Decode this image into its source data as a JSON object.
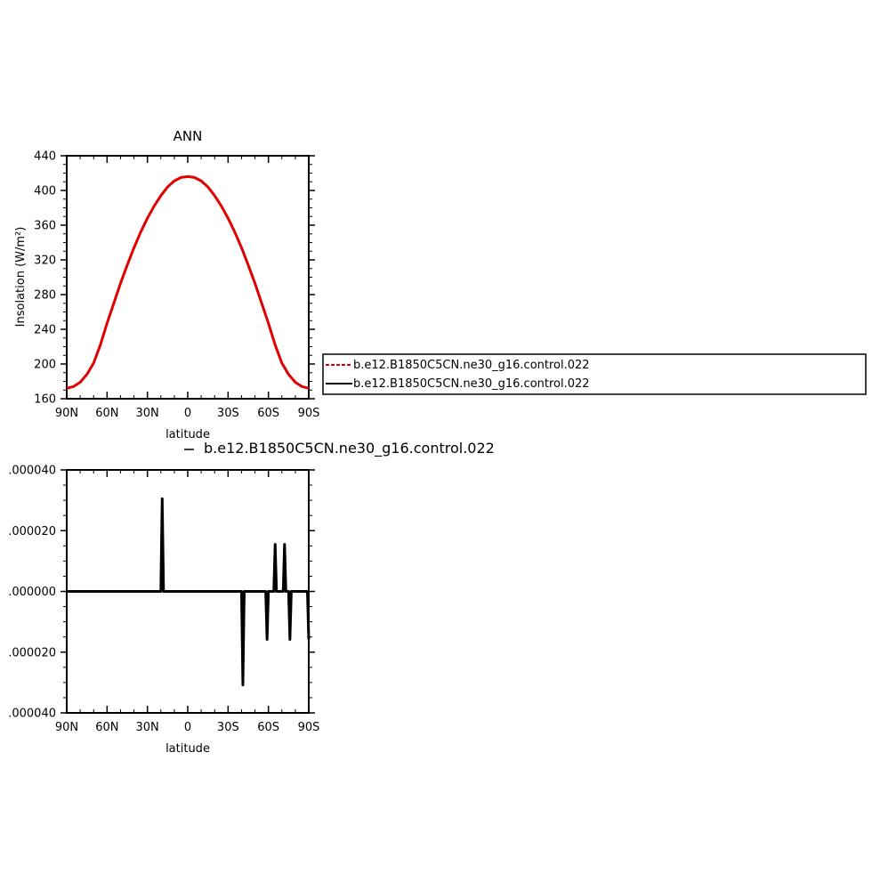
{
  "chart_data": [
    {
      "type": "line",
      "title": "ANN",
      "xlabel": "latitude",
      "ylabel": "Insolation  (W/m²)",
      "xlim": [
        90,
        -90
      ],
      "ylim": [
        160,
        440
      ],
      "xticks": [
        90,
        60,
        30,
        0,
        -30,
        -60,
        -90
      ],
      "xtick_labels": [
        "90N",
        "60N",
        "30N",
        "0",
        "30S",
        "60S",
        "90S"
      ],
      "yticks": [
        160,
        200,
        240,
        280,
        320,
        360,
        400,
        440
      ],
      "ytick_labels": [
        "160",
        "200",
        "240",
        "280",
        "320",
        "360",
        "400",
        "440"
      ],
      "grid": false,
      "legend_position": "right",
      "legend": [
        {
          "label": "b.e12.B1850C5CN.ne30_g16.control.022",
          "color": "#e00000",
          "dash": true
        },
        {
          "label": "b.e12.B1850C5CN.ne30_g16.control.022",
          "color": "#000000",
          "dash": false
        }
      ],
      "series": [
        {
          "color": "#e00000",
          "x": [
            90,
            85,
            80,
            75,
            70,
            65,
            60,
            55,
            50,
            45,
            40,
            35,
            30,
            25,
            20,
            15,
            10,
            5,
            0,
            -5,
            -10,
            -15,
            -20,
            -25,
            -30,
            -35,
            -40,
            -45,
            -50,
            -55,
            -60,
            -65,
            -70,
            -75,
            -80,
            -85,
            -90
          ],
          "y": [
            172,
            174,
            179,
            188,
            201,
            222,
            247,
            270,
            293,
            314,
            334,
            352,
            368,
            382,
            394,
            404,
            411,
            415,
            416,
            415,
            411,
            404,
            394,
            382,
            368,
            352,
            334,
            314,
            293,
            270,
            247,
            222,
            201,
            188,
            179,
            174,
            172
          ]
        }
      ]
    },
    {
      "type": "line",
      "title": "",
      "subtitle": "b.e12.B1850C5CN.ne30_g16.control.022",
      "xlabel": "latitude",
      "ylabel": "",
      "xlim": [
        90,
        -90
      ],
      "ylim": [
        -4e-05,
        4e-05
      ],
      "xticks": [
        90,
        60,
        30,
        0,
        -30,
        -60,
        -90
      ],
      "xtick_labels": [
        "90N",
        "60N",
        "30N",
        "0",
        "30S",
        "60S",
        "90S"
      ],
      "yticks": [
        4e-05,
        2e-05,
        0,
        -2e-05,
        -4e-05
      ],
      "ytick_labels": [
        ".000040",
        ".000020",
        ".000000",
        ".000020",
        ".000040"
      ],
      "grid": false,
      "series": [
        {
          "color": "#000000",
          "x": [
            90,
            20,
            19,
            18,
            17,
            -40,
            -41,
            -42,
            -43,
            -58,
            -59,
            -60,
            -61,
            -64,
            -65,
            -66,
            -67,
            -71,
            -72,
            -73,
            -74,
            -75,
            -76,
            -77,
            -78,
            -89,
            -90
          ],
          "y": [
            0,
            0,
            3.05e-05,
            0,
            0,
            0,
            -3.08e-05,
            0,
            0,
            0,
            -1.58e-05,
            0,
            0,
            0,
            1.55e-05,
            0,
            0,
            0,
            1.55e-05,
            0,
            0,
            0,
            -1.58e-05,
            0,
            0,
            0,
            -1.58e-05
          ]
        }
      ]
    }
  ]
}
